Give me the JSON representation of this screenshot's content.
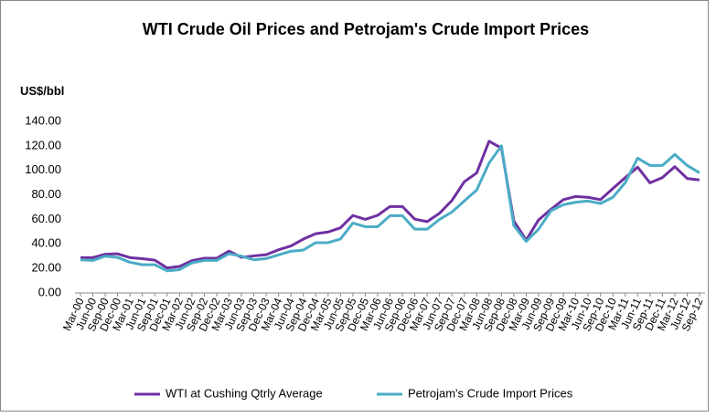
{
  "chart_data": {
    "type": "line",
    "title": "WTI Crude Oil Prices and Petrojam's Crude Import Prices",
    "y_label": "US$/bbl",
    "categories": [
      "Mar-00",
      "Jun-00",
      "Sep-00",
      "Dec-00",
      "Mar-01",
      "Jun-01",
      "Sep-01",
      "Dec-01",
      "Mar-02",
      "Jun-02",
      "Sep-02",
      "Dec-02",
      "Mar-03",
      "Jun-03",
      "Sep-03",
      "Dec-03",
      "Mar-04",
      "Jun-04",
      "Sep-04",
      "Dec-04",
      "Mar-05",
      "Jun-05",
      "Sep-05",
      "Dec-05",
      "Mar-06",
      "Jun-06",
      "Sep-06",
      "Dec-06",
      "Mar-07",
      "Jun-07",
      "Sep-07",
      "Dec-07",
      "Mar-08",
      "Jun-08",
      "Sep-08",
      "Dec-08",
      "Mar-09",
      "Jun-09",
      "Sep-09",
      "Dec-09",
      "Mar-10",
      "Jun-10",
      "Sep-10",
      "Dec-10",
      "Mar-11",
      "Jun-11",
      "Sep-11",
      "Dec-11",
      "Mar-12",
      "Jun-12",
      "Sep-12"
    ],
    "series": [
      {
        "name": "WTI at Cushing Qtrly Average",
        "color": "#7030a0",
        "values": [
          28.8,
          28.8,
          31.6,
          31.9,
          28.8,
          27.9,
          26.7,
          20.4,
          21.6,
          26.3,
          28.3,
          28.3,
          34.1,
          29.0,
          30.2,
          31.2,
          35.2,
          38.3,
          43.9,
          48.3,
          49.7,
          53.1,
          63.2,
          60.0,
          63.3,
          70.5,
          70.5,
          60.2,
          58.2,
          65.0,
          75.4,
          90.7,
          97.9,
          123.8,
          118.2,
          58.7,
          43.1,
          59.6,
          68.2,
          76.1,
          78.7,
          78.0,
          76.1,
          85.2,
          94.1,
          102.6,
          89.8,
          94.1,
          103.0,
          93.4,
          92.2
        ]
      },
      {
        "name": "Petrojam's Crude Import  Prices",
        "color": "#4bacc6",
        "values": [
          27,
          26.5,
          30,
          29,
          25,
          23,
          23,
          18,
          19,
          24.5,
          26.5,
          26.5,
          32,
          30,
          27,
          28,
          31,
          34,
          35,
          41,
          41,
          44,
          57,
          54,
          54,
          63,
          63,
          52,
          52,
          60,
          66,
          75,
          84,
          106,
          120,
          55,
          42,
          52,
          67,
          72,
          74,
          75,
          73,
          78,
          90,
          110,
          104,
          104,
          113,
          104,
          98
        ]
      }
    ],
    "ylim": [
      0,
      140
    ],
    "yticks": [
      {
        "value": 0,
        "label": "0.00"
      },
      {
        "value": 20,
        "label": "20.00"
      },
      {
        "value": 40,
        "label": "40.00"
      },
      {
        "value": 60,
        "label": "60.00"
      },
      {
        "value": 80,
        "label": "80.00"
      },
      {
        "value": 100,
        "label": "100.00"
      },
      {
        "value": 120,
        "label": "120.00"
      },
      {
        "value": 140,
        "label": "140.00"
      }
    ],
    "legend": "bottom"
  }
}
